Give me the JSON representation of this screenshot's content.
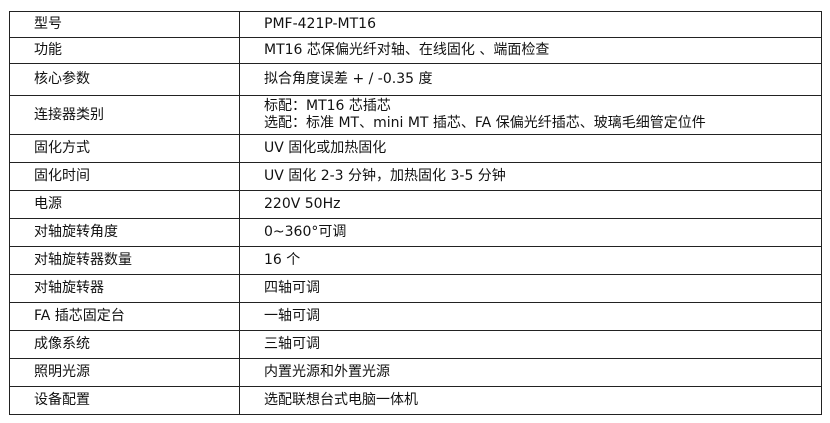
{
  "rows": [
    {
      "label": "型号",
      "value": [
        "PMF-421P-MT16"
      ]
    },
    {
      "label": "功能",
      "value": [
        "MT16 芯保偏光纤对轴、在线固化 、端面检查"
      ]
    },
    {
      "label": "核心参数",
      "value": [
        "拟合角度误差  + / -0.35 度"
      ]
    },
    {
      "label": "连接器类别",
      "value": [
        "标配：MT16 芯插芯",
        "选配：标准 MT、mini MT 插芯、FA 保偏光纤插芯、玻璃毛细管定位件"
      ]
    },
    {
      "label": "固化方式",
      "value": [
        "UV 固化或加热固化"
      ]
    },
    {
      "label": "固化时间",
      "value": [
        "UV 固化 2-3 分钟，加热固化 3-5 分钟"
      ]
    },
    {
      "label": "电源",
      "value": [
        "220V 50Hz"
      ]
    },
    {
      "label": "对轴旋转角度",
      "value": [
        "0~360°可调"
      ]
    },
    {
      "label": "对轴旋转器数量",
      "value": [
        "16 个"
      ]
    },
    {
      "label": "对轴旋转器",
      "value": [
        "四轴可调"
      ]
    },
    {
      "label": "FA 插芯固定台",
      "value": [
        "一轴可调"
      ]
    },
    {
      "label": "成像系统",
      "value": [
        "三轴可调"
      ]
    },
    {
      "label": "照明光源",
      "value": [
        "内置光源和外置光源"
      ]
    },
    {
      "label": "设备配置",
      "value": [
        "选配联想台式电脑一体机"
      ]
    }
  ],
  "header": {
    "label": "型号",
    "value": "PMF-421P-MT16"
  }
}
